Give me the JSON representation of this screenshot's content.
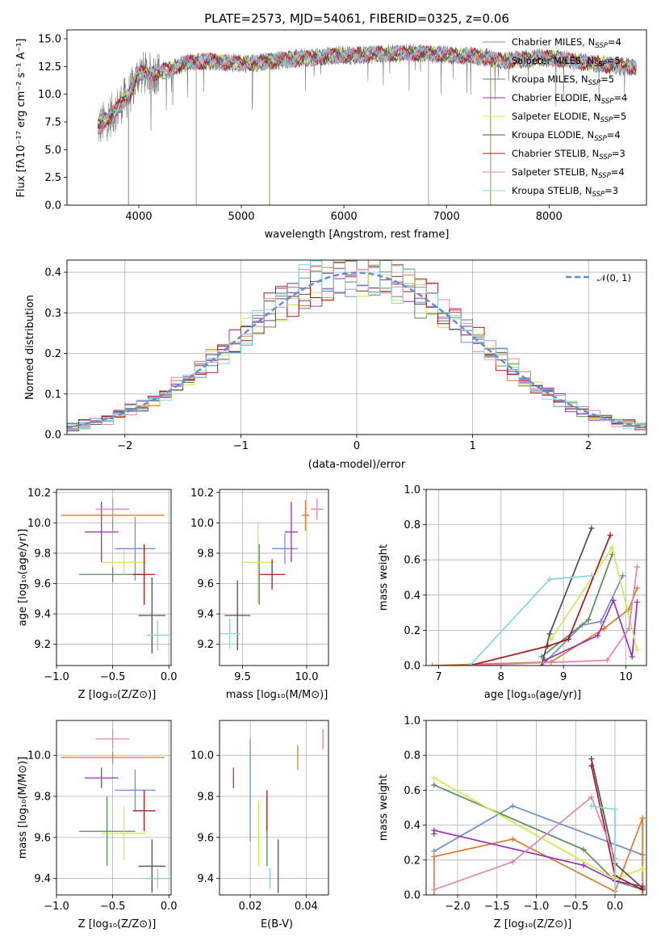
{
  "colors": [
    "#6a8fd8",
    "#e07b28",
    "#5a8a5e",
    "#9b30b8",
    "#c8ee48",
    "#505050",
    "#aa1818",
    "#e085b8",
    "#80d6de"
  ],
  "chart_data": [
    {
      "id": "spectrum",
      "type": "line",
      "title": "PLATE=2573, MJD=54061, FIBERID=0325, z=0.06",
      "xlabel": "wavelength [Angstrom, rest frame]",
      "ylabel": "Flux [fλ10⁻¹⁷ erg cm⁻² s⁻¹ A⁻¹]",
      "xlim": [
        3300,
        8950
      ],
      "ylim": [
        0,
        15.8
      ],
      "xticks": [
        "4000",
        "5000",
        "6000",
        "7000",
        "8000"
      ],
      "xtick_values": [
        4000,
        5000,
        6000,
        7000,
        8000
      ],
      "yticks": [
        "0.0",
        "2.5",
        "5.0",
        "7.5",
        "10.0",
        "12.5",
        "15.0"
      ],
      "ytick_values": [
        0,
        2.5,
        5,
        7.5,
        10,
        12.5,
        15
      ],
      "grid": false,
      "legend_position": "right",
      "legend": [
        {
          "label": "Chabrier MILES, N",
          "sub": "SSP",
          "suffix": "=4"
        },
        {
          "label": "Salpeter MILES, N",
          "sub": "SSP",
          "suffix": "=5"
        },
        {
          "label": "Kroupa MILES, N",
          "sub": "SSP",
          "suffix": "=5"
        },
        {
          "label": "Chabrier ELODIE, N",
          "sub": "SSP",
          "suffix": "=4"
        },
        {
          "label": "Salpeter ELODIE, N",
          "sub": "SSP",
          "suffix": "=5"
        },
        {
          "label": "Kroupa ELODIE, N",
          "sub": "SSP",
          "suffix": "=4"
        },
        {
          "label": "Chabrier STELIB, N",
          "sub": "SSP",
          "suffix": "=3"
        },
        {
          "label": "Salpeter STELIB, N",
          "sub": "SSP",
          "suffix": "=4"
        },
        {
          "label": "Kroupa STELIB, N",
          "sub": "SSP",
          "suffix": "=3"
        }
      ],
      "continuum": {
        "x": [
          3600,
          3700,
          3800,
          3850,
          3900,
          3950,
          4000,
          4100,
          4200,
          4300,
          4400,
          4500,
          4700,
          4900,
          5100,
          5300,
          5500,
          5700,
          5900,
          6100,
          6300,
          6500,
          6700,
          6900,
          7100,
          7300,
          7400,
          7500,
          7700,
          7900,
          8100,
          8300,
          8500,
          8700,
          8850
        ],
        "y": [
          7.0,
          7.8,
          8.8,
          9.5,
          9.8,
          10.8,
          12.0,
          11.8,
          12.0,
          12.2,
          12.6,
          12.9,
          13.0,
          12.8,
          12.8,
          13.0,
          13.2,
          13.3,
          13.5,
          13.5,
          13.6,
          13.7,
          13.7,
          13.6,
          13.5,
          13.4,
          13.3,
          13.0,
          13.1,
          13.3,
          13.2,
          12.9,
          12.7,
          12.5,
          12.4
        ]
      },
      "spikes": [
        {
          "x": 3900,
          "y": 0.0
        },
        {
          "x": 4560,
          "y": 0.0
        },
        {
          "x": 5275,
          "y": 0.0
        },
        {
          "x": 6825,
          "y": 0.0
        },
        {
          "x": 7430,
          "y": 0.0
        }
      ]
    },
    {
      "id": "residuals",
      "type": "histogram",
      "xlabel": "(data-model)/error",
      "ylabel": "Normed distribution",
      "xlim": [
        -2.5,
        2.5
      ],
      "ylim": [
        0,
        0.43
      ],
      "xticks": [
        "−2",
        "−1",
        "0",
        "1",
        "2"
      ],
      "xtick_values": [
        -2,
        -1,
        0,
        1,
        2
      ],
      "yticks": [
        "0.0",
        "0.1",
        "0.2",
        "0.3",
        "0.4"
      ],
      "ytick_values": [
        0,
        0.1,
        0.2,
        0.3,
        0.4
      ],
      "grid": true,
      "legend_position": "top-right",
      "legend_label": "𝒩(0, 1)",
      "bin_width": 0.1,
      "normal": {
        "mean": 0,
        "sigma": 1
      }
    },
    {
      "id": "age-vs-Z",
      "type": "scatter",
      "xlabel": "Z [log₁₀(Z/Z⊙)]",
      "ylabel": "age  [log₁₀(age/yr)]",
      "xlim": [
        -1.0,
        0.02
      ],
      "ylim": [
        9.06,
        10.22
      ],
      "xticks": [
        "−1.0",
        "−0.5",
        "0.0"
      ],
      "xtick_values": [
        -1.0,
        -0.5,
        0.0
      ],
      "yticks": [
        "9.2",
        "9.4",
        "9.6",
        "9.8",
        "10.0",
        "10.2"
      ],
      "ytick_values": [
        9.2,
        9.4,
        9.6,
        9.8,
        10.0,
        10.2
      ],
      "grid": true,
      "points": [
        {
          "x": -0.3,
          "y": 9.83,
          "xerr": 0.18,
          "yerr": 0.21
        },
        {
          "x": -0.5,
          "y": 10.05,
          "xerr": 0.46,
          "yerr": 0.1
        },
        {
          "x": -0.5,
          "y": 9.66,
          "xerr": 0.3,
          "yerr": 0.05
        },
        {
          "x": -0.6,
          "y": 9.94,
          "xerr": 0.15,
          "yerr": 0.2
        },
        {
          "x": -0.4,
          "y": 9.74,
          "xerr": 0.2,
          "yerr": 0.08
        },
        {
          "x": -0.15,
          "y": 9.39,
          "xerr": 0.12,
          "yerr": 0.25
        },
        {
          "x": -0.22,
          "y": 9.66,
          "xerr": 0.1,
          "yerr": 0.2
        },
        {
          "x": -0.5,
          "y": 10.09,
          "xerr": 0.15,
          "yerr": 0.07
        },
        {
          "x": -0.1,
          "y": 9.26,
          "xerr": 0.1,
          "yerr": 0.1
        }
      ]
    },
    {
      "id": "age-vs-mass",
      "type": "scatter",
      "xlabel": "mass [log₁₀(M/M⊙)]",
      "ylabel": "",
      "xlim": [
        9.32,
        10.17
      ],
      "ylim": [
        9.06,
        10.22
      ],
      "xticks": [
        "9.5",
        "10.0"
      ],
      "xtick_values": [
        9.5,
        10.0
      ],
      "yticks": [
        "9.2",
        "9.4",
        "9.6",
        "9.8",
        "10.0",
        "10.2"
      ],
      "ytick_values": [
        9.2,
        9.4,
        9.6,
        9.8,
        10.0,
        10.2
      ],
      "grid": true,
      "points": [
        {
          "x": 9.83,
          "y": 9.83,
          "xerr": 0.1,
          "yerr": 0.1
        },
        {
          "x": 9.99,
          "y": 10.05,
          "xerr": 0.03,
          "yerr": 0.1
        },
        {
          "x": 9.63,
          "y": 9.66,
          "xerr": 0.0,
          "yerr": 0.2
        },
        {
          "x": 9.88,
          "y": 9.94,
          "xerr": 0.05,
          "yerr": 0.2
        },
        {
          "x": 9.62,
          "y": 9.74,
          "xerr": 0.13,
          "yerr": 0.27
        },
        {
          "x": 9.46,
          "y": 9.39,
          "xerr": 0.1,
          "yerr": 0.23
        },
        {
          "x": 9.73,
          "y": 9.66,
          "xerr": 0.1,
          "yerr": 0.1
        },
        {
          "x": 10.08,
          "y": 10.09,
          "xerr": 0.05,
          "yerr": 0.07
        },
        {
          "x": 9.4,
          "y": 9.27,
          "xerr": 0.08,
          "yerr": 0.1
        }
      ]
    },
    {
      "id": "weight-vs-age",
      "type": "line",
      "xlabel": "age  [log₁₀(age/yr)]",
      "ylabel": "mass weight",
      "xlim": [
        6.8,
        10.33
      ],
      "ylim": [
        0,
        1.0
      ],
      "xticks": [
        "7",
        "8",
        "9",
        "10"
      ],
      "xtick_values": [
        7,
        8,
        9,
        10
      ],
      "yticks": [
        "0.0",
        "0.2",
        "0.4",
        "0.6",
        "0.8",
        "1.0"
      ],
      "ytick_values": [
        0,
        0.2,
        0.4,
        0.6,
        0.8,
        1.0
      ],
      "grid": true,
      "series": [
        {
          "x": [
            8.65,
            9.3,
            9.6,
            9.95
          ],
          "y": [
            0.0,
            0.23,
            0.25,
            0.51
          ]
        },
        {
          "x": [
            6.9,
            8.8,
            9.65,
            10.05,
            10.18
          ],
          "y": [
            0.0,
            0.02,
            0.21,
            0.32,
            0.44
          ]
        },
        {
          "x": [
            8.65,
            9.4,
            9.78
          ],
          "y": [
            0.05,
            0.26,
            0.63
          ]
        },
        {
          "x": [
            8.7,
            9.55,
            9.8,
            10.1,
            10.18
          ],
          "y": [
            0.03,
            0.17,
            0.37,
            0.05,
            0.36
          ]
        },
        {
          "x": [
            8.8,
            9.78,
            10.18
          ],
          "y": [
            0.15,
            0.67,
            0.09
          ]
        },
        {
          "x": [
            8.65,
            8.78,
            9.45
          ],
          "y": [
            0.0,
            0.18,
            0.78
          ]
        },
        {
          "x": [
            7.5,
            8.75,
            9.08,
            9.75
          ],
          "y": [
            0.0,
            0.11,
            0.15,
            0.74
          ]
        },
        {
          "x": [
            7.5,
            9.7,
            10.05,
            10.18
          ],
          "y": [
            0.0,
            0.03,
            0.21,
            0.56
          ]
        },
        {
          "x": [
            7.5,
            8.78,
            9.45
          ],
          "y": [
            0.0,
            0.49,
            0.51
          ]
        }
      ]
    },
    {
      "id": "mass-vs-Z",
      "type": "scatter",
      "xlabel": "Z [log₁₀(Z/Z⊙)]",
      "ylabel": "mass [log₁₀(M/M⊙)]",
      "xlim": [
        -1.0,
        0.02
      ],
      "ylim": [
        9.32,
        10.17
      ],
      "xticks": [
        "−1.0",
        "−0.5",
        "0.0"
      ],
      "xtick_values": [
        -1.0,
        -0.5,
        0.0
      ],
      "yticks": [
        "9.4",
        "9.6",
        "9.8",
        "10.0"
      ],
      "ytick_values": [
        9.4,
        9.6,
        9.8,
        10.0
      ],
      "grid": true,
      "points": [
        {
          "x": -0.3,
          "y": 9.83,
          "xerr": 0.18,
          "yerr": 0.1
        },
        {
          "x": -0.5,
          "y": 9.99,
          "xerr": 0.46,
          "yerr": 0.03
        },
        {
          "x": -0.55,
          "y": 9.63,
          "xerr": 0.25,
          "yerr": 0.17
        },
        {
          "x": -0.6,
          "y": 9.89,
          "xerr": 0.15,
          "yerr": 0.05
        },
        {
          "x": -0.4,
          "y": 9.62,
          "xerr": 0.2,
          "yerr": 0.13
        },
        {
          "x": -0.15,
          "y": 9.46,
          "xerr": 0.12,
          "yerr": 0.13
        },
        {
          "x": -0.22,
          "y": 9.73,
          "xerr": 0.1,
          "yerr": 0.1
        },
        {
          "x": -0.5,
          "y": 10.08,
          "xerr": 0.15,
          "yerr": 0.05
        },
        {
          "x": -0.1,
          "y": 9.4,
          "xerr": 0.1,
          "yerr": 0.05
        }
      ]
    },
    {
      "id": "mass-vs-ebv",
      "type": "scatter",
      "xlabel": "E(B-V)",
      "ylabel": "",
      "xlim": [
        0.009,
        0.048
      ],
      "ylim": [
        9.32,
        10.17
      ],
      "xticks": [
        "0.02",
        "0.04"
      ],
      "xtick_values": [
        0.02,
        0.04
      ],
      "yticks": [
        "9.4",
        "9.6",
        "9.8",
        "10.0"
      ],
      "ytick_values": [
        9.4,
        9.6,
        9.8,
        10.0
      ],
      "grid": true,
      "points": [
        {
          "x": 0.02,
          "y": 9.83,
          "xerr": 0,
          "yerr": 0.25
        },
        {
          "x": 0.037,
          "y": 9.99,
          "xerr": 0,
          "yerr": 0.06
        },
        {
          "x": 0.026,
          "y": 9.63,
          "xerr": 0,
          "yerr": 0.17
        },
        {
          "x": 0.014,
          "y": 9.89,
          "xerr": 0,
          "yerr": 0.05
        },
        {
          "x": 0.023,
          "y": 9.62,
          "xerr": 0,
          "yerr": 0.16
        },
        {
          "x": 0.03,
          "y": 9.46,
          "xerr": 0,
          "yerr": 0.13
        },
        {
          "x": 0.026,
          "y": 9.73,
          "xerr": 0,
          "yerr": 0.1
        },
        {
          "x": 0.046,
          "y": 10.08,
          "xerr": 0,
          "yerr": 0.05
        },
        {
          "x": 0.027,
          "y": 9.4,
          "xerr": 0,
          "yerr": 0.05
        }
      ]
    },
    {
      "id": "weight-vs-Z",
      "type": "line",
      "xlabel": "Z [log₁₀(Z/Z⊙)]",
      "ylabel": "mass weight",
      "xlim": [
        -2.4,
        0.4
      ],
      "ylim": [
        0,
        1.0
      ],
      "xticks": [
        "−2.0",
        "−1.5",
        "−1.0",
        "−0.5",
        "0.0"
      ],
      "xtick_values": [
        -2.0,
        -1.5,
        -1.0,
        -0.5,
        0.0
      ],
      "yticks": [
        "0.0",
        "0.2",
        "0.4",
        "0.6",
        "0.8",
        "1.0"
      ],
      "ytick_values": [
        0,
        0.2,
        0.4,
        0.6,
        0.8,
        1.0
      ],
      "grid": true,
      "series": [
        {
          "x": [
            -2.3,
            -1.3,
            0.35
          ],
          "y": [
            0.25,
            0.51,
            0.23
          ]
        },
        {
          "x": [
            -2.3,
            -2.3,
            -1.3,
            0.0,
            0.35,
            0.35
          ],
          "y": [
            0.0,
            0.22,
            0.32,
            0.02,
            0.44,
            0.0
          ]
        },
        {
          "x": [
            -2.3,
            -0.4,
            0.0,
            0.35
          ],
          "y": [
            0.63,
            0.26,
            0.08,
            0.03
          ]
        },
        {
          "x": [
            -2.3,
            -2.3,
            -0.4,
            0.0,
            0.35
          ],
          "y": [
            0.35,
            0.37,
            0.17,
            0.08,
            0.05
          ]
        },
        {
          "x": [
            -2.3,
            0.0,
            0.35
          ],
          "y": [
            0.67,
            0.09,
            0.15
          ]
        },
        {
          "x": [
            -0.3,
            0.0,
            0.35
          ],
          "y": [
            0.78,
            0.18,
            0.04
          ]
        },
        {
          "x": [
            -0.3,
            0.0,
            0.35
          ],
          "y": [
            0.74,
            0.11,
            0.03
          ]
        },
        {
          "x": [
            -2.3,
            -1.3,
            -0.3,
            0.0
          ],
          "y": [
            0.03,
            0.19,
            0.56,
            0.21
          ]
        },
        {
          "x": [
            -0.3,
            0.0,
            0.0
          ],
          "y": [
            0.51,
            0.49,
            0.0
          ]
        }
      ]
    }
  ]
}
